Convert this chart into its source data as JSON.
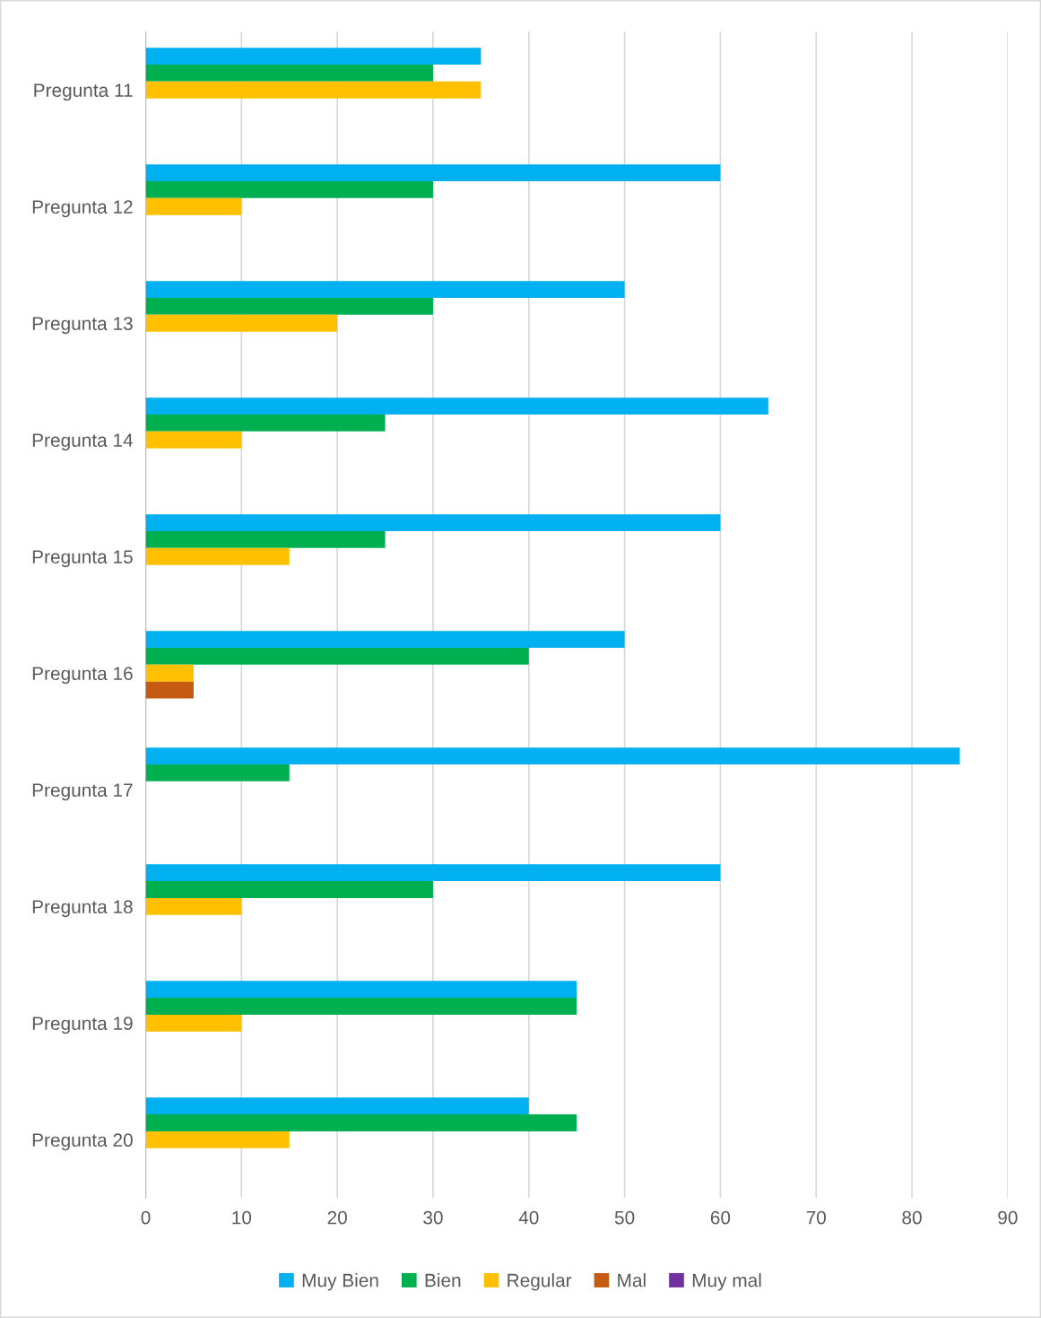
{
  "chart_data": {
    "type": "bar",
    "orientation": "horizontal",
    "categories": [
      "Pregunta 11",
      "Pregunta 12",
      "Pregunta 13",
      "Pregunta 14",
      "Pregunta 15",
      "Pregunta 16",
      "Pregunta 17",
      "Pregunta 18",
      "Pregunta 19",
      "Pregunta 20"
    ],
    "series": [
      {
        "name": "Muy Bien",
        "color": "#00b0f0",
        "values": [
          35,
          60,
          50,
          65,
          60,
          50,
          85,
          60,
          45,
          40
        ]
      },
      {
        "name": "Bien",
        "color": "#00b050",
        "values": [
          30,
          30,
          30,
          25,
          25,
          40,
          15,
          30,
          45,
          45
        ]
      },
      {
        "name": "Regular",
        "color": "#ffc000",
        "values": [
          35,
          10,
          20,
          10,
          15,
          5,
          0,
          10,
          10,
          15
        ]
      },
      {
        "name": "Mal",
        "color": "#c55a11",
        "values": [
          0,
          0,
          0,
          0,
          0,
          5,
          0,
          0,
          0,
          0
        ]
      },
      {
        "name": "Muy mal",
        "color": "#7030a0",
        "values": [
          0,
          0,
          0,
          0,
          0,
          0,
          0,
          0,
          0,
          0
        ]
      }
    ],
    "xlim": [
      0,
      90
    ],
    "xticks": [
      0,
      10,
      20,
      30,
      40,
      50,
      60,
      70,
      80,
      90
    ],
    "grid": "x",
    "legend": "bottom"
  }
}
